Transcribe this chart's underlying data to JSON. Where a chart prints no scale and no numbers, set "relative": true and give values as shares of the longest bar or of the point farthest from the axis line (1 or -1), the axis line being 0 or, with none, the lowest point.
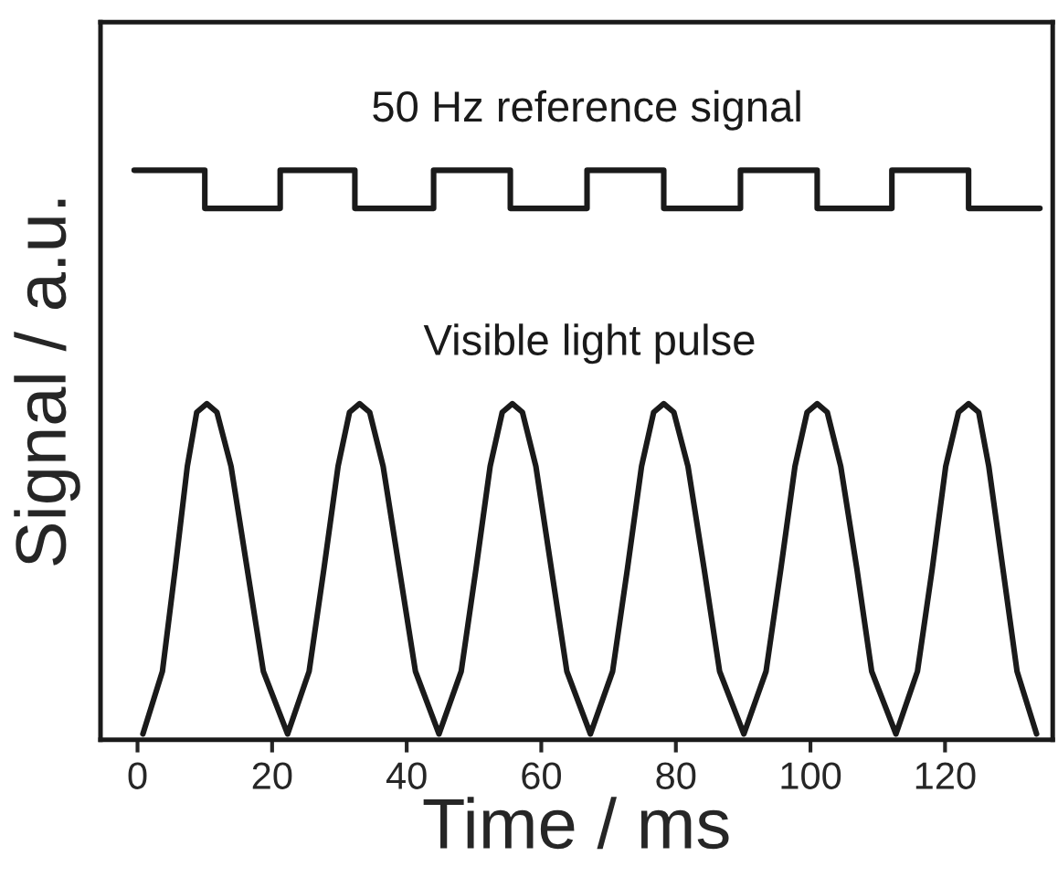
{
  "chart_data": {
    "type": "line",
    "relative": true,
    "xlabel": "Time / ms",
    "ylabel": "Signal / a.u.",
    "xlim": [
      -5.5,
      136
    ],
    "xticks": [
      0,
      20,
      40,
      60,
      80,
      100,
      120
    ],
    "grid": false,
    "legend": false,
    "marker": "none",
    "line_style": "solid",
    "series": [
      {
        "name": "50 Hz reference signal",
        "type": "step",
        "color": "#1a1a1a",
        "x": [
          -0.5,
          10.0,
          21.2,
          32.3,
          44.0,
          55.4,
          66.8,
          78.2,
          89.6,
          101.0,
          112.1,
          123.5,
          134.1
        ],
        "values": [
          1,
          0.933,
          1,
          0.933,
          1,
          0.933,
          1,
          0.933,
          1,
          0.933,
          1,
          0.933,
          0.933
        ]
      },
      {
        "name": "Visible light pulse",
        "color": "#1a1a1a",
        "x": [
          0.8,
          3.7,
          5.6,
          7.4,
          8.8,
          10.3,
          11.8,
          13.9,
          16.3,
          18.7,
          22.3,
          25.5,
          27.7,
          29.8,
          31.5,
          33.0,
          34.5,
          36.5,
          38.9,
          41.3,
          44.8,
          48.1,
          50.3,
          52.4,
          54.2,
          55.7,
          57.2,
          59.2,
          61.5,
          63.8,
          67.3,
          70.6,
          72.8,
          74.9,
          76.7,
          78.2,
          79.7,
          81.8,
          84.2,
          86.5,
          90.1,
          93.4,
          95.6,
          97.7,
          99.5,
          101.0,
          102.5,
          104.5,
          106.9,
          109.1,
          112.7,
          115.9,
          118.1,
          120.1,
          122.0,
          123.5,
          125.0,
          126.5,
          128.6,
          130.7,
          133.6
        ],
        "values": [
          0.01,
          0.12,
          0.3,
          0.48,
          0.575,
          0.59,
          0.575,
          0.48,
          0.3,
          0.12,
          0.01,
          0.12,
          0.3,
          0.48,
          0.575,
          0.59,
          0.575,
          0.48,
          0.3,
          0.12,
          0.01,
          0.12,
          0.3,
          0.48,
          0.575,
          0.59,
          0.575,
          0.48,
          0.3,
          0.12,
          0.01,
          0.12,
          0.3,
          0.48,
          0.575,
          0.59,
          0.575,
          0.48,
          0.3,
          0.12,
          0.01,
          0.12,
          0.3,
          0.48,
          0.575,
          0.59,
          0.575,
          0.48,
          0.3,
          0.12,
          0.01,
          0.12,
          0.3,
          0.48,
          0.575,
          0.59,
          0.575,
          0.48,
          0.3,
          0.12,
          0.01
        ]
      }
    ]
  }
}
